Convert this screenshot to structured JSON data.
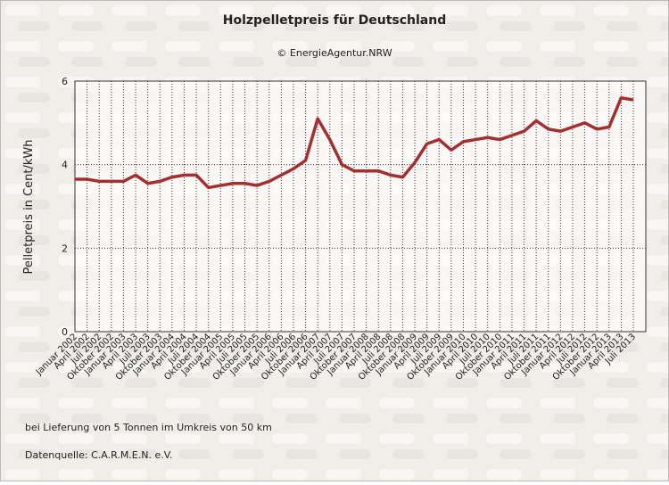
{
  "chart_data": {
    "type": "line",
    "title": "Holzpelletpreis für Deutschland",
    "subtitle": "© EnergieAgentur.NRW",
    "y_label": "Pelletpreis in Cent/kWh",
    "notes": [
      "bei Lieferung von 5 Tonnen im Umkreis von 50 km",
      "Datenquelle: C.A.R.M.E.N. e.V."
    ],
    "categories": [
      "Januar 2002",
      "April 2002",
      "Juli 2002",
      "Oktober 2002",
      "Januar 2003",
      "April 2003",
      "Juli 2003",
      "Oktober 2003",
      "Januar 2004",
      "April 2004",
      "Juli 2004",
      "Oktober 2004",
      "Januar 2005",
      "April 2005",
      "Juli 2005",
      "Oktober 2005",
      "Januar 2006",
      "April 2006",
      "Juli 2006",
      "Oktober 2006",
      "Januar 2007",
      "April 2007",
      "Juli 2007",
      "Oktober 2007",
      "Januar 2008",
      "April 2008",
      "Juli 2008",
      "Oktober 2008",
      "Januar 2009",
      "April 2009",
      "Juli 2009",
      "Oktober 2009",
      "Januar 2010",
      "April 2010",
      "Juli 2010",
      "Oktober 2010",
      "Januar 2011",
      "April 2011",
      "Juli 2011",
      "Oktober 2011",
      "Januar 2012",
      "April 2012",
      "Juli 2012",
      "Oktober 2012",
      "Januar 2013",
      "April 2013",
      "Juli 2013"
    ],
    "series": [
      {
        "name": "Pelletpreis",
        "color": "#a33030",
        "values": [
          3.65,
          3.65,
          3.6,
          3.6,
          3.6,
          3.75,
          3.55,
          3.6,
          3.7,
          3.75,
          3.75,
          3.45,
          3.5,
          3.55,
          3.55,
          3.5,
          3.6,
          3.75,
          3.9,
          4.1,
          5.1,
          4.6,
          4.0,
          3.85,
          3.85,
          3.85,
          3.75,
          3.7,
          4.05,
          4.5,
          4.6,
          4.35,
          4.55,
          4.6,
          4.65,
          4.6,
          4.7,
          4.8,
          5.05,
          4.85,
          4.8,
          4.9,
          5.0,
          4.85,
          4.9,
          5.6,
          5.55
        ]
      }
    ],
    "ylim": [
      0,
      6
    ],
    "yticks": [
      0,
      2,
      4,
      6
    ],
    "grid": true
  }
}
